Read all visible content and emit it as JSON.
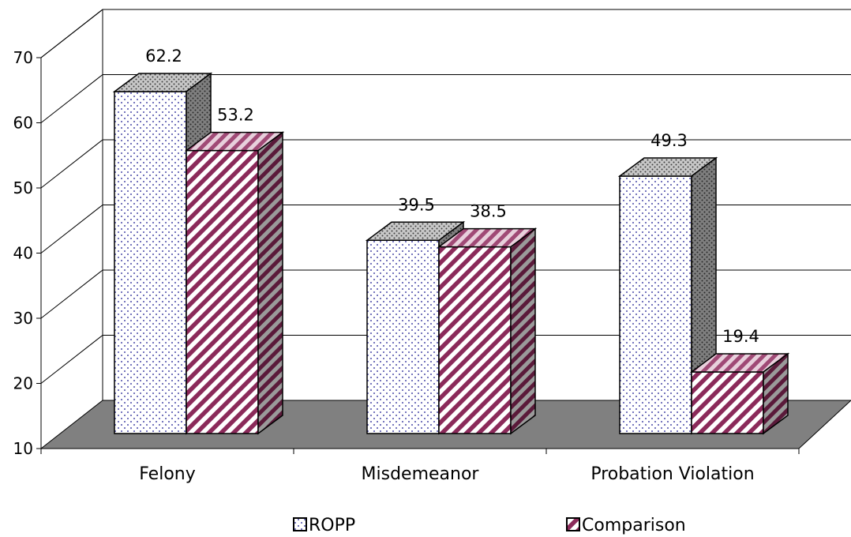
{
  "chart_data": {
    "type": "bar",
    "title": "",
    "xlabel": "",
    "ylabel": "",
    "ylim": [
      10,
      70
    ],
    "yticks": [
      10,
      20,
      30,
      40,
      50,
      60,
      70
    ],
    "categories": [
      "Felony",
      "Misdemeanor",
      "Probation Violation"
    ],
    "series": [
      {
        "name": "ROPP",
        "values": [
          62.2,
          39.5,
          49.3
        ],
        "pattern": "dots",
        "color": "#4a4aa8"
      },
      {
        "name": "Comparison",
        "values": [
          53.2,
          38.5,
          19.4
        ],
        "pattern": "stripes",
        "color": "#8b2a5a"
      }
    ],
    "grid": true,
    "legend": "bottom",
    "floor_color": "#808080"
  }
}
